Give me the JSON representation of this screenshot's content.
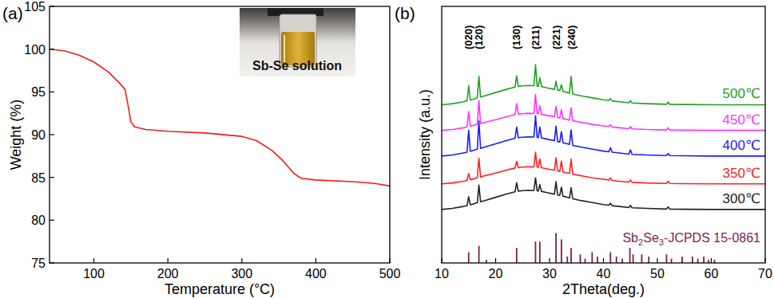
{
  "chart_data": [
    {
      "type": "line",
      "title": "(a)",
      "xlabel": "Temperature (°C)",
      "ylabel": "Weight (%)",
      "xlim": [
        40,
        500
      ],
      "xticks": [
        100,
        200,
        300,
        400,
        500
      ],
      "ylim": [
        75,
        105
      ],
      "yticks": [
        75,
        80,
        85,
        90,
        95,
        100,
        105
      ],
      "x": [
        40,
        60,
        80,
        100,
        120,
        135,
        142,
        146,
        150,
        155,
        170,
        200,
        250,
        300,
        320,
        340,
        355,
        370,
        380,
        400,
        450,
        480,
        500
      ],
      "values": [
        100,
        99.8,
        99.3,
        98.5,
        97.3,
        96.0,
        95.3,
        93.5,
        91.5,
        90.9,
        90.6,
        90.4,
        90.2,
        89.8,
        89.3,
        88.2,
        87.0,
        85.5,
        84.9,
        84.7,
        84.5,
        84.3,
        84.0
      ],
      "color": "#ee1c1c",
      "annotations": [
        {
          "text": "Sb-Se solution"
        }
      ]
    },
    {
      "type": "line",
      "title": "(b)",
      "xlabel": "2Theta(deg.)",
      "ylabel": "Intensity (a.u.)",
      "xlim": [
        10,
        70
      ],
      "xticks": [
        10,
        20,
        30,
        40,
        50,
        60,
        70
      ],
      "ylim": [
        0,
        120
      ],
      "tick_labels": "x",
      "x": [
        10,
        12,
        14,
        14.7,
        15.0,
        15.3,
        16.0,
        16.6,
        16.9,
        17.2,
        18,
        20,
        22,
        23.6,
        23.9,
        24.2,
        25,
        26,
        27.1,
        27.4,
        27.7,
        27.9,
        28.2,
        28.5,
        29.5,
        30.9,
        31.2,
        31.5,
        31.9,
        32.2,
        32.5,
        33.2,
        33.7,
        34.0,
        34.3,
        36,
        38,
        40,
        41.0,
        41.3,
        41.6,
        43,
        44.7,
        45.0,
        45.3,
        48,
        51.7,
        52.0,
        52.3,
        55,
        60,
        65,
        70
      ],
      "series": [
        {
          "name": "300℃",
          "color": "#222222",
          "values": [
            25,
            25.5,
            26.4,
            26.8,
            31.0,
            27.2,
            27.7,
            28.2,
            36.4,
            28.6,
            29.2,
            30.7,
            32.2,
            33.3,
            37.5,
            33.6,
            33.8,
            34.0,
            33.9,
            39.8,
            33.7,
            33.6,
            36.6,
            33.5,
            32.9,
            32.2,
            38.0,
            31.8,
            31.6,
            35.4,
            31.2,
            30.8,
            30.4,
            35.2,
            30.0,
            29.1,
            28.2,
            27.3,
            27.0,
            27.9,
            26.8,
            26.4,
            25.9,
            26.9,
            25.8,
            25.5,
            25.2,
            26.2,
            25.2,
            25.1,
            25.0,
            25.0,
            25.0
          ]
        },
        {
          "name": "350℃",
          "color": "#ff2020",
          "values": [
            37,
            37.4,
            38.2,
            38.6,
            41.8,
            38.9,
            39.4,
            39.9,
            49.0,
            40.2,
            40.8,
            42.0,
            43.4,
            44.4,
            47.5,
            44.6,
            44.8,
            45.0,
            44.9,
            51.8,
            44.8,
            44.7,
            48.6,
            44.5,
            44.0,
            43.4,
            49.2,
            43.1,
            42.8,
            47.7,
            42.5,
            42.1,
            41.8,
            48.6,
            41.5,
            40.7,
            39.8,
            39.1,
            38.8,
            39.7,
            38.6,
            38.2,
            37.8,
            38.8,
            37.7,
            37.4,
            37.2,
            38.2,
            37.2,
            37.1,
            37.0,
            37.0,
            37.0
          ]
        },
        {
          "name": "400℃",
          "color": "#1a1aff",
          "values": [
            50,
            50.5,
            51.4,
            51.8,
            62.0,
            52.2,
            52.7,
            53.2,
            66.4,
            53.6,
            54.2,
            55.7,
            57.2,
            58.3,
            63.5,
            58.6,
            58.8,
            59.0,
            58.9,
            68.8,
            58.7,
            58.6,
            63.6,
            58.5,
            57.9,
            57.2,
            64.0,
            56.8,
            56.6,
            61.4,
            56.2,
            55.8,
            55.4,
            62.2,
            55.0,
            54.1,
            53.2,
            52.3,
            52.0,
            53.9,
            51.8,
            51.4,
            50.9,
            52.9,
            50.8,
            50.5,
            50.2,
            51.2,
            50.2,
            50.1,
            50.0,
            50.0,
            50.0
          ]
        },
        {
          "name": "450℃",
          "color": "#ff33ff",
          "values": [
            62,
            62.4,
            63.2,
            63.6,
            70.8,
            63.9,
            64.4,
            64.9,
            76.0,
            65.2,
            65.8,
            67.0,
            68.4,
            69.4,
            74.5,
            69.6,
            69.8,
            70.0,
            69.9,
            78.8,
            69.8,
            69.7,
            73.6,
            69.5,
            69.0,
            68.4,
            73.2,
            68.1,
            67.8,
            71.7,
            67.5,
            67.1,
            66.8,
            72.6,
            66.5,
            65.7,
            64.8,
            64.1,
            63.8,
            64.7,
            63.6,
            63.2,
            62.8,
            63.8,
            62.7,
            62.4,
            62.2,
            63.2,
            62.2,
            62.1,
            62.0,
            62.0,
            62.0
          ]
        },
        {
          "name": "500℃",
          "color": "#22a022",
          "values": [
            74,
            74.5,
            75.4,
            75.8,
            83.0,
            76.2,
            76.7,
            77.2,
            87.4,
            77.6,
            78.2,
            79.7,
            81.2,
            82.3,
            87.5,
            82.6,
            82.8,
            83.0,
            82.9,
            92.8,
            82.7,
            82.6,
            86.6,
            82.5,
            81.9,
            81.2,
            85.0,
            80.8,
            80.6,
            83.4,
            80.2,
            79.8,
            79.4,
            87.2,
            79.0,
            78.1,
            77.2,
            76.3,
            76.0,
            76.9,
            75.8,
            75.4,
            74.9,
            75.9,
            74.8,
            74.5,
            74.2,
            75.2,
            74.2,
            74.1,
            74.0,
            74.0,
            74.0
          ]
        },
        {
          "name": "Sb2Se3-JCPDS 15-0861",
          "color": "#7b1f4f",
          "type": "stick",
          "x": [
            15.0,
            16.9,
            18.3,
            23.9,
            27.4,
            28.2,
            31.2,
            32.2,
            33.3,
            34.0,
            35.7,
            36.6,
            37.9,
            38.9,
            41.3,
            42.4,
            43.5,
            44.9,
            45.5,
            47.1,
            48.4,
            51.7,
            52.6,
            54.6,
            56.5,
            57.5,
            58.6,
            59.5,
            60.6
          ],
          "values": [
            5,
            8,
            1.5,
            7,
            10,
            10,
            14,
            11,
            3,
            7,
            4,
            2,
            5,
            3,
            5,
            3,
            2,
            7,
            4,
            4,
            3,
            4,
            2,
            3,
            3,
            2,
            3,
            1.5,
            1.5
          ]
        }
      ],
      "annotations": [
        {
          "text": "(020)",
          "x": 15.0
        },
        {
          "text": "(120)",
          "x": 16.9
        },
        {
          "text": "(130)",
          "x": 23.9
        },
        {
          "text": "(211)",
          "x": 27.4
        },
        {
          "text": "(221)",
          "x": 31.2
        },
        {
          "text": "(240)",
          "x": 34.0
        }
      ]
    }
  ]
}
